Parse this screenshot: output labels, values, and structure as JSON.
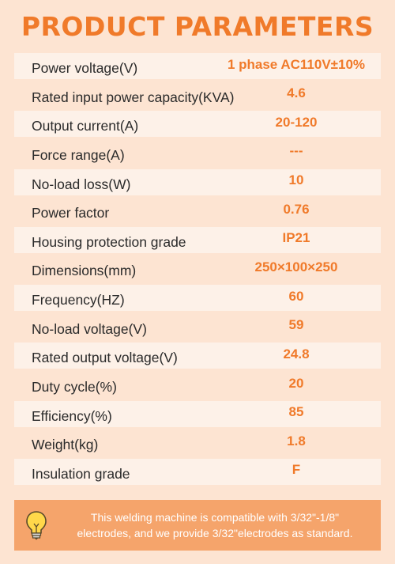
{
  "title": "PRODUCT PARAMETERS",
  "params": [
    {
      "label": "Power voltage(V)",
      "value": "1 phase AC110V±10%"
    },
    {
      "label": "Rated input power capacity(KVA)",
      "value": "4.6"
    },
    {
      "label": "Output current(A)",
      "value": "20-120"
    },
    {
      "label": "Force range(A)",
      "value": "---"
    },
    {
      "label": "No-load loss(W)",
      "value": "10"
    },
    {
      "label": "Power factor",
      "value": "0.76"
    },
    {
      "label": "Housing protection grade",
      "value": "IP21"
    },
    {
      "label": "Dimensions(mm)",
      "value": "250×100×250"
    },
    {
      "label": "Frequency(HZ)",
      "value": "60"
    },
    {
      "label": "No-load voltage(V)",
      "value": "59"
    },
    {
      "label": "Rated output voltage(V)",
      "value": "24.8"
    },
    {
      "label": "Duty cycle(%)",
      "value": "20"
    },
    {
      "label": "Efficiency(%)",
      "value": "85"
    },
    {
      "label": "Weight(kg)",
      "value": "1.8"
    },
    {
      "label": "Insulation grade",
      "value": "F"
    }
  ],
  "note": {
    "icon": "lightbulb-icon",
    "line1": "This welding machine is compatible with 3/32\"-1/8\"",
    "line2": "electrodes, and we provide 3/32\"electrodes as standard."
  },
  "colors": {
    "accent": "#f07a2a",
    "background": "#fde4d2",
    "row_alt": "#fdf1e8",
    "note_bg": "#f5a46b"
  }
}
